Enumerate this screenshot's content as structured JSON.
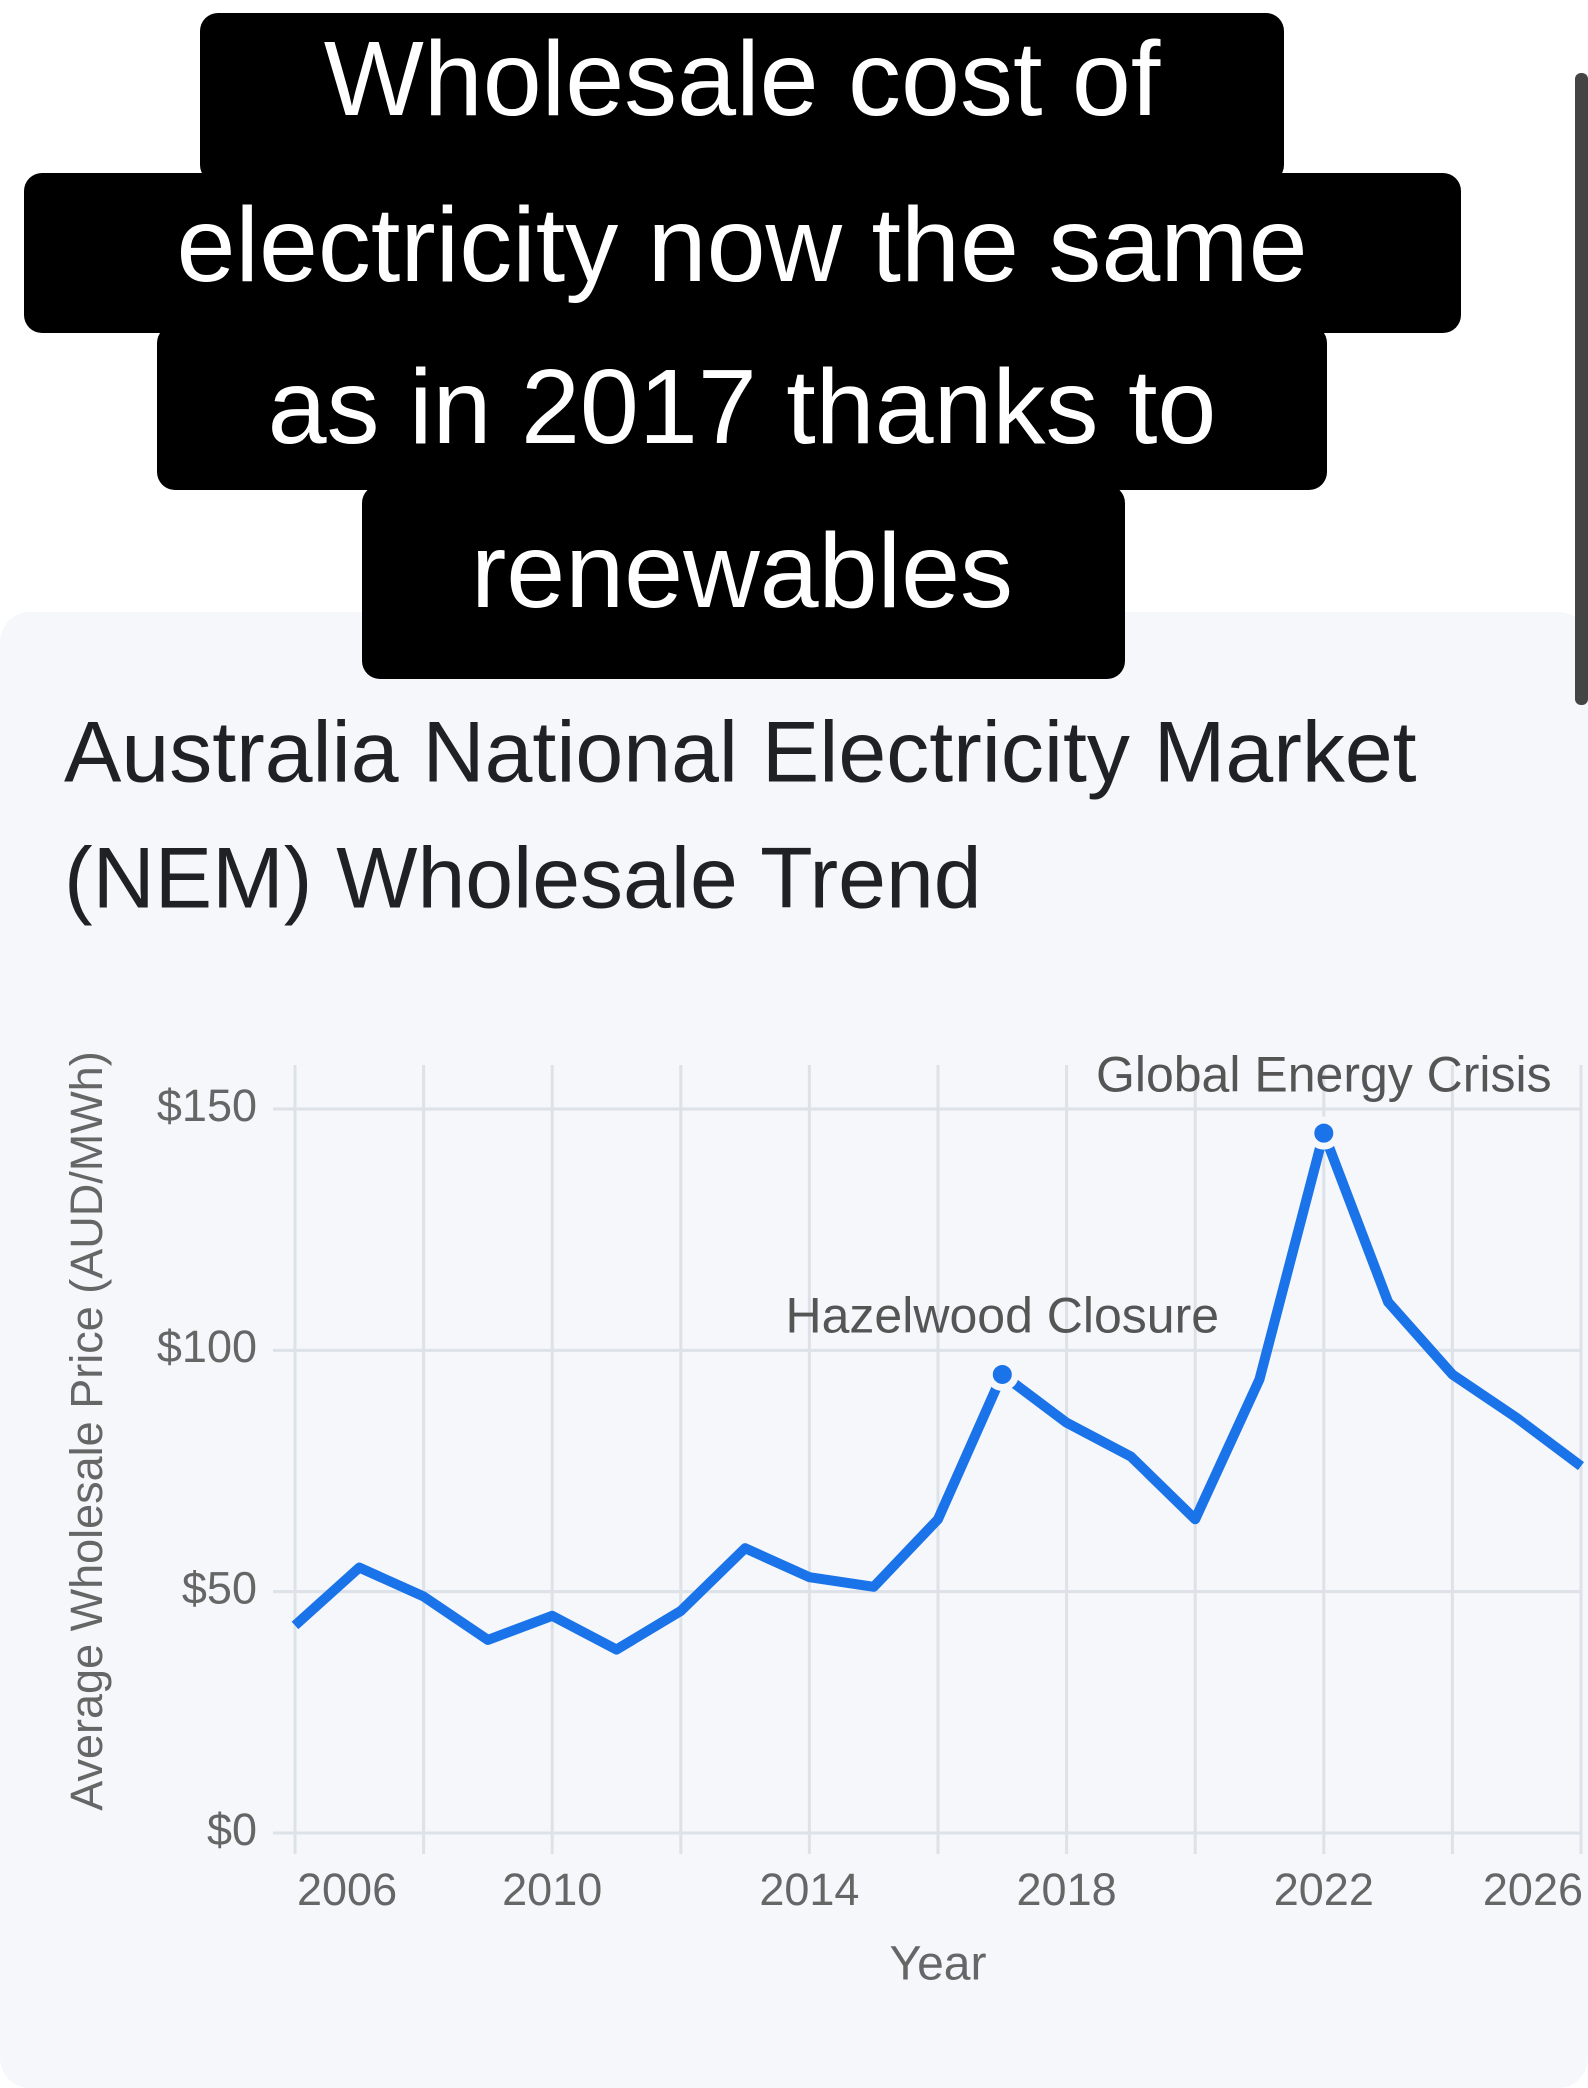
{
  "caption": [
    "Wholesale cost of",
    "electricity now the same",
    "as in 2017 thanks to",
    "renewables"
  ],
  "chart_data": {
    "type": "line",
    "title": [
      "Australia National Electricity Market",
      "(NEM) Wholesale Trend"
    ],
    "x_label": "Year",
    "y_label": "Average Wholesale Price (AUD/MWh)",
    "x": [
      2006,
      2007,
      2008,
      2009,
      2010,
      2011,
      2012,
      2013,
      2014,
      2015,
      2016,
      2017,
      2018,
      2019,
      2020,
      2021,
      2022,
      2023,
      2024,
      2025,
      2026
    ],
    "series": [
      {
        "name": "Average Wholesale Price",
        "color": "#1a73e8",
        "values": [
          43,
          55,
          49,
          40,
          45,
          38,
          46,
          59,
          53,
          51,
          65,
          95,
          85,
          78,
          65,
          94,
          145,
          110,
          95,
          86,
          76
        ]
      }
    ],
    "highlights": [
      {
        "label": "Hazelwood Closure",
        "x": 2017,
        "y": 95
      },
      {
        "label": "Global Energy Crisis",
        "x": 2022,
        "y": 145
      }
    ],
    "xlim": [
      2006,
      2026
    ],
    "xticks": [
      2006,
      2010,
      2014,
      2018,
      2022,
      2026
    ],
    "xminorticks": [
      2008,
      2012,
      2016,
      2020,
      2024
    ],
    "ylim": [
      0,
      150
    ],
    "yticks": [
      {
        "value": 0,
        "label": "$0"
      },
      {
        "value": 50,
        "label": "$50"
      },
      {
        "value": 100,
        "label": "$100"
      },
      {
        "value": 150,
        "label": "$150"
      }
    ],
    "grid": true
  }
}
